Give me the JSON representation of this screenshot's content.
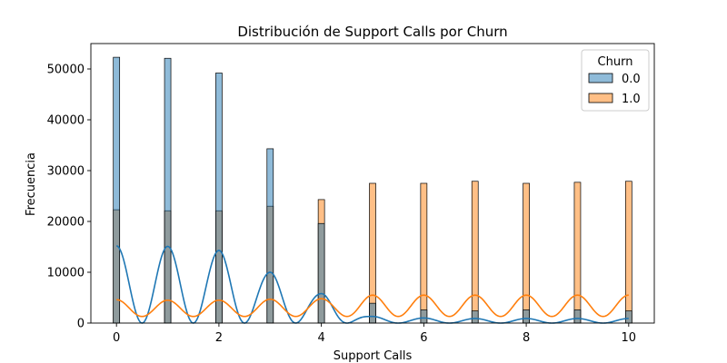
{
  "chart_data": {
    "type": "bar",
    "title": "Distribución de Support Calls por Churn",
    "xlabel": "Support Calls",
    "ylabel": "Frecuencia",
    "xlim": [
      -0.5,
      10.5
    ],
    "ylim": [
      0,
      55000
    ],
    "x_ticks": [
      0,
      2,
      4,
      6,
      8,
      10
    ],
    "y_ticks": [
      0,
      10000,
      20000,
      30000,
      40000,
      50000
    ],
    "grid": false,
    "legend_title": "Churn",
    "legend_position": "top-right",
    "x": [
      0,
      1,
      2,
      3,
      4,
      5,
      6,
      7,
      8,
      9,
      10
    ],
    "series": [
      {
        "name": "0.0",
        "color": "#1f77b4",
        "values": [
          52300,
          52100,
          49200,
          34300,
          19600,
          3900,
          2600,
          2400,
          2600,
          2600,
          2400
        ]
      },
      {
        "name": "1.0",
        "color": "#ff7f0e",
        "values": [
          22300,
          22100,
          22100,
          23000,
          24300,
          27500,
          27500,
          27900,
          27500,
          27700,
          27900
        ]
      }
    ],
    "kde": {
      "0.0": {
        "peaks": [
          15200,
          15100,
          14300,
          10000,
          5800,
          1300,
          1000,
          900,
          900,
          900,
          900
        ],
        "trough": 0
      },
      "1.0": {
        "peaks": [
          4600,
          4500,
          4500,
          4700,
          4800,
          5500,
          5500,
          5500,
          5500,
          5500,
          5500
        ],
        "trough": 1300
      }
    }
  }
}
